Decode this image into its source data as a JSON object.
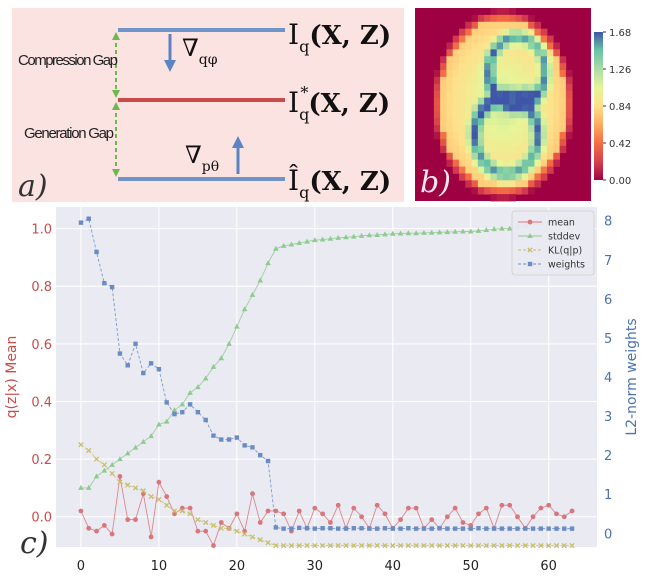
{
  "panel_a": {
    "label": "a)",
    "compression_gap": "Compression Gap",
    "generation_gap": "Generation Gap",
    "grad_phi": "∇",
    "grad_phi_sub": "qφ",
    "grad_theta": "∇",
    "grad_theta_sub": "pθ",
    "levels": [
      {
        "name": "I",
        "sub": "q",
        "sup": "",
        "hat": false,
        "args": "(X, Z)",
        "color": "#6f95c8"
      },
      {
        "name": "I",
        "sub": "q",
        "sup": "*",
        "hat": false,
        "args": "(X, Z)",
        "color": "#c94c4c"
      },
      {
        "name": "Î",
        "sub": "q",
        "sup": "",
        "hat": true,
        "args": "(X, Z)",
        "color": "#6f95c8"
      }
    ]
  },
  "panel_b": {
    "label": "b)",
    "colorbar_ticks": [
      "1.68",
      "1.26",
      "0.84",
      "0.42",
      "0.00"
    ]
  },
  "chart_data": {
    "type": "line",
    "label": "c)",
    "x": [
      0,
      1,
      2,
      3,
      4,
      5,
      6,
      7,
      8,
      9,
      10,
      11,
      12,
      13,
      14,
      15,
      16,
      17,
      18,
      19,
      20,
      21,
      22,
      23,
      24,
      25,
      26,
      27,
      28,
      29,
      30,
      31,
      32,
      33,
      34,
      35,
      36,
      37,
      38,
      39,
      40,
      41,
      42,
      43,
      44,
      45,
      46,
      47,
      48,
      49,
      50,
      51,
      52,
      53,
      54,
      55,
      56,
      57,
      58,
      59,
      60,
      61,
      62,
      63
    ],
    "xticks": [
      0,
      10,
      20,
      30,
      40,
      50,
      60
    ],
    "xlim": [
      -3.2,
      66.2
    ],
    "ylabel_left": "q(z|x) Mean",
    "ylim_left": [
      -0.105,
      1.075
    ],
    "yticks_left": [
      "0.0",
      "0.2",
      "0.4",
      "0.6",
      "0.8",
      "1.0"
    ],
    "yticks_left_values": [
      0,
      0.2,
      0.4,
      0.6,
      0.8,
      1.0
    ],
    "ylabel_right": "L2-norm weights",
    "ylim_right": [
      -0.35,
      8.35
    ],
    "yticks_right": [
      "0",
      "1",
      "2",
      "3",
      "4",
      "5",
      "6",
      "7",
      "8"
    ],
    "yticks_right_values": [
      0,
      1,
      2,
      3,
      4,
      5,
      6,
      7,
      8
    ],
    "legend_position": "top-right",
    "grid": true,
    "series": [
      {
        "name": "mean",
        "axis": "left",
        "color": "#d9767a",
        "marker": "circle",
        "values": [
          0.02,
          -0.04,
          -0.05,
          -0.03,
          -0.06,
          0.14,
          -0.01,
          -0.01,
          0.08,
          -0.07,
          0.12,
          0.07,
          0.01,
          0.03,
          0.03,
          -0.05,
          -0.05,
          -0.1,
          -0.02,
          -0.04,
          0.01,
          -0.05,
          0.08,
          -0.02,
          0.02,
          0.02,
          0.01,
          -0.05,
          0.02,
          -0.04,
          0.03,
          0.01,
          -0.02,
          0.04,
          -0.04,
          0.03,
          0.0,
          -0.04,
          0.04,
          0.01,
          -0.04,
          -0.01,
          0.03,
          0.03,
          -0.04,
          -0.01,
          -0.04,
          0.0,
          0.03,
          -0.02,
          -0.03,
          0.01,
          0.03,
          -0.04,
          0.04,
          0.04,
          0.0,
          -0.04,
          0.0,
          0.03,
          0.04,
          0.01,
          0.0,
          0.02
        ]
      },
      {
        "name": "stddev",
        "axis": "left",
        "color": "#8fcb8f",
        "marker": "triangle",
        "values": [
          0.1,
          0.1,
          0.14,
          0.16,
          0.18,
          0.2,
          0.22,
          0.24,
          0.26,
          0.28,
          0.32,
          0.33,
          0.37,
          0.39,
          0.43,
          0.45,
          0.48,
          0.52,
          0.55,
          0.6,
          0.66,
          0.72,
          0.77,
          0.82,
          0.88,
          0.93,
          0.94,
          0.945,
          0.95,
          0.955,
          0.96,
          0.962,
          0.965,
          0.968,
          0.97,
          0.972,
          0.975,
          0.977,
          0.978,
          0.98,
          0.982,
          0.983,
          0.984,
          0.984,
          0.985,
          0.986,
          0.987,
          0.988,
          0.989,
          0.99,
          0.99,
          0.992,
          0.995,
          0.998,
          1.0,
          1.0,
          1.005,
          1.01,
          1.015,
          1.02,
          1.02,
          1.03,
          1.035,
          1.04
        ]
      },
      {
        "name": "KL(q|p)",
        "axis": "left",
        "color": "#c8bf6a",
        "marker": "x",
        "values": [
          0.25,
          0.23,
          0.2,
          0.18,
          0.15,
          0.12,
          0.11,
          0.1,
          0.09,
          0.07,
          0.06,
          0.04,
          0.02,
          0.02,
          0.01,
          -0.01,
          -0.02,
          -0.03,
          -0.04,
          -0.04,
          -0.05,
          -0.06,
          -0.07,
          -0.08,
          -0.09,
          -0.1,
          -0.1,
          -0.1,
          -0.1,
          -0.1,
          -0.1,
          -0.1,
          -0.1,
          -0.1,
          -0.1,
          -0.1,
          -0.1,
          -0.1,
          -0.1,
          -0.1,
          -0.1,
          -0.1,
          -0.1,
          -0.1,
          -0.1,
          -0.1,
          -0.1,
          -0.1,
          -0.1,
          -0.1,
          -0.1,
          -0.1,
          -0.1,
          -0.1,
          -0.1,
          -0.1,
          -0.1,
          -0.1,
          -0.1,
          -0.1,
          -0.1,
          -0.1,
          -0.1,
          -0.1
        ]
      },
      {
        "name": "weights",
        "axis": "right",
        "color": "#6a8cc4",
        "marker": "square",
        "values": [
          7.95,
          8.05,
          7.2,
          6.4,
          6.3,
          4.6,
          4.3,
          4.85,
          4.1,
          4.35,
          4.2,
          3.35,
          3.05,
          3.1,
          3.3,
          3.1,
          2.9,
          2.5,
          2.4,
          2.4,
          2.45,
          2.25,
          2.2,
          2.0,
          1.85,
          0.15,
          0.12,
          0.12,
          0.14,
          0.13,
          0.12,
          0.13,
          0.13,
          0.12,
          0.12,
          0.13,
          0.13,
          0.12,
          0.12,
          0.13,
          0.12,
          0.12,
          0.13,
          0.12,
          0.12,
          0.12,
          0.13,
          0.12,
          0.12,
          0.12,
          0.12,
          0.13,
          0.12,
          0.12,
          0.12,
          0.12,
          0.12,
          0.12,
          0.12,
          0.12,
          0.12,
          0.12,
          0.12,
          0.12
        ]
      }
    ]
  }
}
